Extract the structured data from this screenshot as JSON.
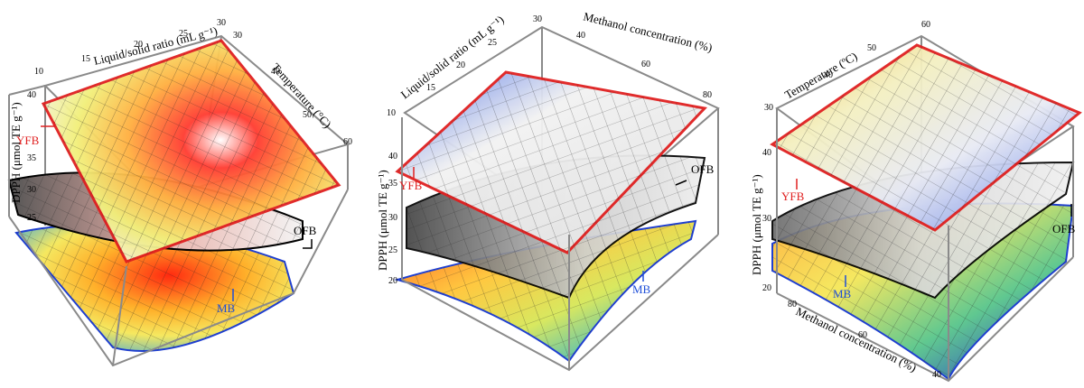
{
  "chart_data": [
    {
      "type": "surface",
      "zlabel": "DPPH (μmol TE g⁻¹)",
      "zticks": [
        "25",
        "30",
        "35",
        "40"
      ],
      "xlabel": "Liquid/solid ratio (mL g⁻¹)",
      "xticks": [
        "10",
        "15",
        "20",
        "25",
        "30"
      ],
      "ylabel": "Temperature (°C)",
      "yticks": [
        "30",
        "40",
        "50",
        "60"
      ],
      "series": [
        {
          "name": "YFB",
          "color": "#e02020",
          "z": [
            36,
            38,
            37,
            35,
            41,
            38
          ]
        },
        {
          "name": "OFB",
          "color": "#000000",
          "z": [
            26,
            30,
            33,
            29
          ]
        },
        {
          "name": "MB",
          "color": "#1f4fd8",
          "z": [
            22,
            24,
            26,
            23
          ]
        }
      ]
    },
    {
      "type": "surface",
      "zlabel": "DPPH (μmol TE g⁻¹)",
      "zticks": [
        "20",
        "25",
        "30",
        "35",
        "40"
      ],
      "xlabel": "Liquid/solid ratio (mL g⁻¹)",
      "xticks": [
        "10",
        "15",
        "20",
        "25",
        "30"
      ],
      "ylabel": "Methanol concentration (%)",
      "yticks": [
        "40",
        "60",
        "80"
      ],
      "series": [
        {
          "name": "YFB",
          "color": "#e02020",
          "z": [
            38,
            41,
            40,
            36
          ]
        },
        {
          "name": "OFB",
          "color": "#000000",
          "z": [
            30,
            33,
            32,
            28
          ]
        },
        {
          "name": "MB",
          "color": "#1f4fd8",
          "z": [
            20,
            24,
            23,
            19
          ]
        }
      ]
    },
    {
      "type": "surface",
      "zlabel": "DPPH (μmol TE g⁻¹)",
      "zticks": [
        "20",
        "30",
        "40"
      ],
      "xlabel": "Temperature (ºC)",
      "xticks": [
        "30",
        "40",
        "50",
        "60"
      ],
      "ylabel": "Methanol concentration (%)",
      "yticks": [
        "80",
        "60",
        "40"
      ],
      "series": [
        {
          "name": "YFB",
          "color": "#e02020",
          "z": [
            41,
            43,
            40,
            37
          ]
        },
        {
          "name": "OFB",
          "color": "#000000",
          "z": [
            32,
            35,
            30,
            27
          ]
        },
        {
          "name": "MB",
          "color": "#1f4fd8",
          "z": [
            26,
            29,
            24,
            20
          ]
        }
      ]
    }
  ]
}
